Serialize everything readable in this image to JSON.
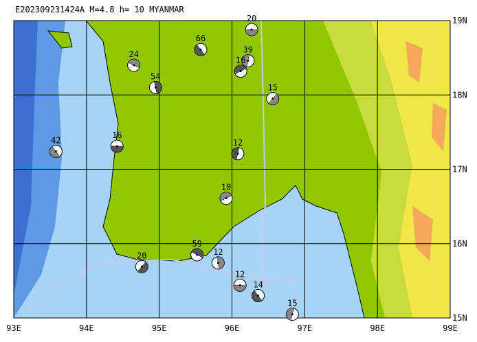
{
  "chart_data": {
    "type": "map",
    "title": "E202309231424A  M=4.8  h= 10  MYANMAR",
    "xlim": [
      93,
      99
    ],
    "ylim": [
      15,
      19
    ],
    "xticks": [
      {
        "value": 93,
        "label": "93E"
      },
      {
        "value": 94,
        "label": "94E"
      },
      {
        "value": 95,
        "label": "95E"
      },
      {
        "value": 96,
        "label": "96E"
      },
      {
        "value": 97,
        "label": "97E"
      },
      {
        "value": 98,
        "label": "98E"
      },
      {
        "value": 99,
        "label": "99E"
      }
    ],
    "yticks": [
      {
        "value": 15,
        "label": "15N"
      },
      {
        "value": 16,
        "label": "16N"
      },
      {
        "value": 17,
        "label": "17N"
      },
      {
        "value": 18,
        "label": "18N"
      },
      {
        "value": 19,
        "label": "19N"
      }
    ],
    "grid": true,
    "events": {
      "labels": [
        "20",
        "66",
        "39",
        "16",
        "24",
        "54",
        "15",
        "16",
        "42",
        "12",
        "10",
        "59",
        "12",
        "20",
        "12",
        "14",
        "15"
      ],
      "lon": [
        96.27,
        95.57,
        96.22,
        96.12,
        94.65,
        94.95,
        96.56,
        94.42,
        93.58,
        96.08,
        95.92,
        95.52,
        95.81,
        94.76,
        96.11,
        96.36,
        96.83
      ],
      "lat": [
        18.88,
        18.61,
        18.46,
        18.32,
        18.4,
        18.1,
        17.95,
        17.31,
        17.24,
        17.21,
        16.61,
        15.85,
        15.74,
        15.69,
        15.44,
        15.3,
        15.05
      ]
    }
  }
}
